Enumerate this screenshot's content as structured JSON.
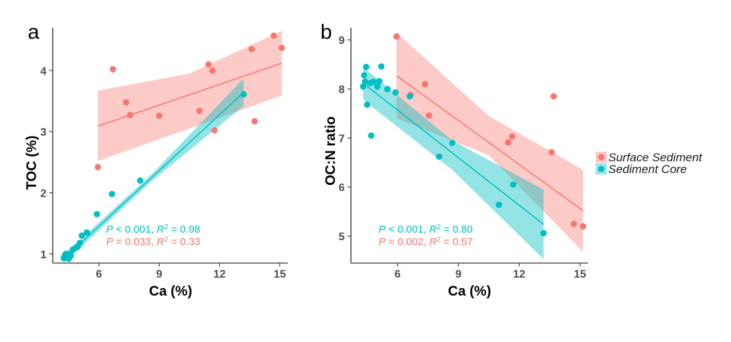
{
  "colors": {
    "surface": "#F8766D",
    "core": "#00BFC4",
    "surface_band": "#F8766D",
    "core_band": "#00BFC4"
  },
  "legend": {
    "position": "right",
    "items": [
      "Surface Sediment",
      "Sediment Core"
    ]
  },
  "chart_data": [
    {
      "type": "scatter",
      "panel_label": "a",
      "xlabel": "Ca (%)",
      "ylabel": "TOC (%)",
      "xlim": [
        3.7,
        15.4
      ],
      "ylim": [
        0.85,
        4.7
      ],
      "xticks": [
        6,
        9,
        12,
        15
      ],
      "yticks": [
        1,
        2,
        3,
        4
      ],
      "grid": false,
      "series": [
        {
          "name": "Surface Sediment",
          "points": [
            [
              5.95,
              2.42
            ],
            [
              6.7,
              4.02
            ],
            [
              7.35,
              3.48
            ],
            [
              7.55,
              3.27
            ],
            [
              9.0,
              3.26
            ],
            [
              11.0,
              3.34
            ],
            [
              11.45,
              4.1
            ],
            [
              11.65,
              4.0
            ],
            [
              11.75,
              3.02
            ],
            [
              13.6,
              4.35
            ],
            [
              13.75,
              3.17
            ],
            [
              14.7,
              4.57
            ],
            [
              15.1,
              4.37
            ]
          ],
          "fit": {
            "x": [
              5.95,
              15.1
            ],
            "y": [
              3.09,
              4.12
            ]
          },
          "ci": {
            "x": [
              5.95,
              10.5,
              15.1
            ],
            "upper": [
              3.67,
              3.95,
              4.65
            ],
            "lower": [
              2.52,
              3.05,
              3.59
            ]
          }
        },
        {
          "name": "Sediment Core",
          "points": [
            [
              4.25,
              0.93
            ],
            [
              4.3,
              0.97
            ],
            [
              4.35,
              1.0
            ],
            [
              4.4,
              0.98
            ],
            [
              4.45,
              1.0
            ],
            [
              4.5,
              0.92
            ],
            [
              4.6,
              0.97
            ],
            [
              4.7,
              1.07
            ],
            [
              4.85,
              1.1
            ],
            [
              4.95,
              1.12
            ],
            [
              5.05,
              1.18
            ],
            [
              5.15,
              1.3
            ],
            [
              5.4,
              1.35
            ],
            [
              5.9,
              1.65
            ],
            [
              6.65,
              1.98
            ],
            [
              8.05,
              2.2
            ],
            [
              13.2,
              3.61
            ]
          ],
          "fit": {
            "x": [
              4.25,
              13.2
            ],
            "y": [
              0.92,
              3.64
            ]
          },
          "ci": {
            "x": [
              4.25,
              8.7,
              13.2
            ],
            "upper": [
              0.99,
              2.33,
              3.87
            ],
            "lower": [
              0.85,
              2.21,
              3.42
            ]
          }
        }
      ],
      "annotations": [
        {
          "series": "Sediment Core",
          "p_text": "P",
          "p_val": " < 0.001, ",
          "r_text": "R",
          "r_val": " = 0.98"
        },
        {
          "series": "Surface Sediment",
          "p_text": "P",
          "p_val": " = 0.033, ",
          "r_text": "R",
          "r_val": " = 0.33"
        }
      ]
    },
    {
      "type": "scatter",
      "panel_label": "b",
      "xlabel": "Ca (%)",
      "ylabel": "OC:N ratio",
      "xlim": [
        3.7,
        15.4
      ],
      "ylim": [
        4.45,
        9.25
      ],
      "xticks": [
        6,
        9,
        12,
        15
      ],
      "yticks": [
        5,
        6,
        7,
        8,
        9
      ],
      "grid": false,
      "series": [
        {
          "name": "Surface Sediment",
          "points": [
            [
              5.95,
              9.07
            ],
            [
              6.65,
              7.88
            ],
            [
              7.35,
              8.1
            ],
            [
              7.55,
              7.46
            ],
            [
              11.45,
              6.91
            ],
            [
              11.65,
              7.03
            ],
            [
              13.6,
              6.71
            ],
            [
              13.7,
              7.85
            ],
            [
              14.7,
              5.25
            ],
            [
              15.15,
              5.2
            ]
          ],
          "fit": {
            "x": [
              5.95,
              15.15
            ],
            "y": [
              8.27,
              5.52
            ]
          },
          "ci": {
            "x": [
              5.95,
              10.5,
              15.15
            ],
            "upper": [
              9.15,
              7.45,
              6.35
            ],
            "lower": [
              7.4,
              6.65,
              4.68
            ]
          }
        },
        {
          "name": "Sediment Core",
          "points": [
            [
              4.3,
              8.05
            ],
            [
              4.35,
              8.28
            ],
            [
              4.4,
              8.15
            ],
            [
              4.45,
              8.45
            ],
            [
              4.5,
              7.68
            ],
            [
              4.65,
              8.12
            ],
            [
              4.7,
              7.05
            ],
            [
              4.8,
              8.15
            ],
            [
              5.0,
              8.05
            ],
            [
              5.1,
              8.16
            ],
            [
              5.2,
              8.46
            ],
            [
              5.5,
              8.0
            ],
            [
              5.9,
              7.93
            ],
            [
              6.6,
              7.85
            ],
            [
              8.05,
              6.62
            ],
            [
              8.7,
              6.9
            ],
            [
              11.0,
              5.64
            ],
            [
              11.7,
              6.05
            ],
            [
              13.2,
              5.06
            ]
          ],
          "fit": {
            "x": [
              4.3,
              13.2
            ],
            "y": [
              8.12,
              5.24
            ]
          },
          "ci": {
            "x": [
              4.3,
              8.7,
              13.2
            ],
            "upper": [
              8.45,
              6.95,
              5.95
            ],
            "lower": [
              7.78,
              6.35,
              4.53
            ]
          }
        }
      ],
      "annotations": [
        {
          "series": "Sediment Core",
          "p_text": "P",
          "p_val": " < 0.001, ",
          "r_text": "R",
          "r_val": " = 0.80"
        },
        {
          "series": "Surface Sediment",
          "p_text": "P",
          "p_val": " = 0.002, ",
          "r_text": "R",
          "r_val": " = 0.57"
        }
      ]
    }
  ]
}
